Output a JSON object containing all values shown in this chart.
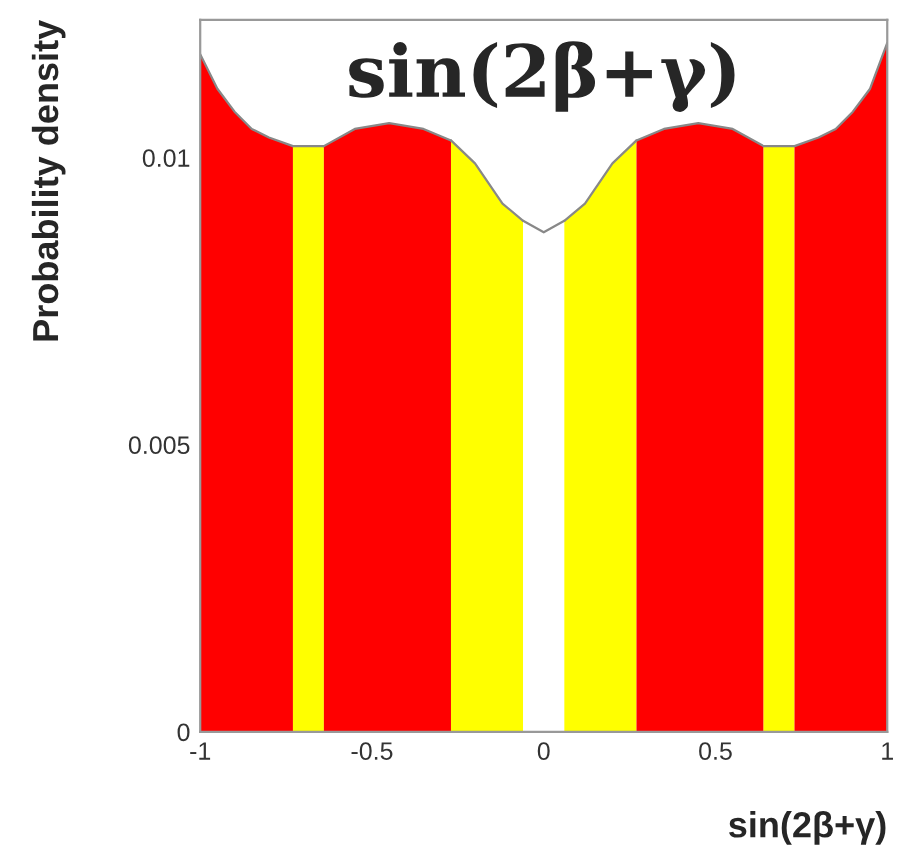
{
  "chart_data": {
    "type": "area",
    "title": "sin(2β+γ)",
    "xlabel": "sin(2β+γ)",
    "ylabel": "Probability density",
    "xlim": [
      -1,
      1
    ],
    "xticks": [
      -1,
      -0.5,
      0,
      0.5,
      1
    ],
    "ylim": [
      0,
      0.0124
    ],
    "yticks": [
      0,
      0.005,
      0.01
    ],
    "grid": false,
    "legend": false,
    "series": [
      {
        "color": "#ff0000",
        "x": [
          -1,
          -0.95,
          -0.9,
          -0.85,
          -0.8,
          -0.73
        ],
        "values": [
          0.0118,
          0.0112,
          0.0108,
          0.0105,
          0.01035,
          0.0102
        ]
      },
      {
        "color": "#ffff00",
        "x": [
          -0.73,
          -0.64
        ],
        "values": [
          0.0102,
          0.0102
        ]
      },
      {
        "color": "#ff0000",
        "x": [
          -0.64,
          -0.55,
          -0.45,
          -0.35,
          -0.27
        ],
        "values": [
          0.0102,
          0.0105,
          0.0106,
          0.0105,
          0.0103
        ]
      },
      {
        "color": "#ffff00",
        "x": [
          -0.27,
          -0.2,
          -0.12,
          -0.06
        ],
        "values": [
          0.0103,
          0.0099,
          0.0092,
          0.0089
        ]
      },
      {
        "color": "#ffffff",
        "x": [
          -0.06,
          0,
          0.06
        ],
        "values": [
          0.0089,
          0.0087,
          0.0089
        ]
      },
      {
        "color": "#ffff00",
        "x": [
          0.06,
          0.12,
          0.2,
          0.27
        ],
        "values": [
          0.0089,
          0.0092,
          0.0099,
          0.0103
        ]
      },
      {
        "color": "#ff0000",
        "x": [
          0.27,
          0.35,
          0.45,
          0.55,
          0.64
        ],
        "values": [
          0.0103,
          0.0105,
          0.0106,
          0.0105,
          0.0102
        ]
      },
      {
        "color": "#ffff00",
        "x": [
          0.64,
          0.73
        ],
        "values": [
          0.0102,
          0.0102
        ]
      },
      {
        "color": "#ff0000",
        "x": [
          0.73,
          0.8,
          0.85,
          0.9,
          0.95,
          1
        ],
        "values": [
          0.0102,
          0.01035,
          0.0105,
          0.0108,
          0.0112,
          0.012
        ]
      }
    ]
  }
}
